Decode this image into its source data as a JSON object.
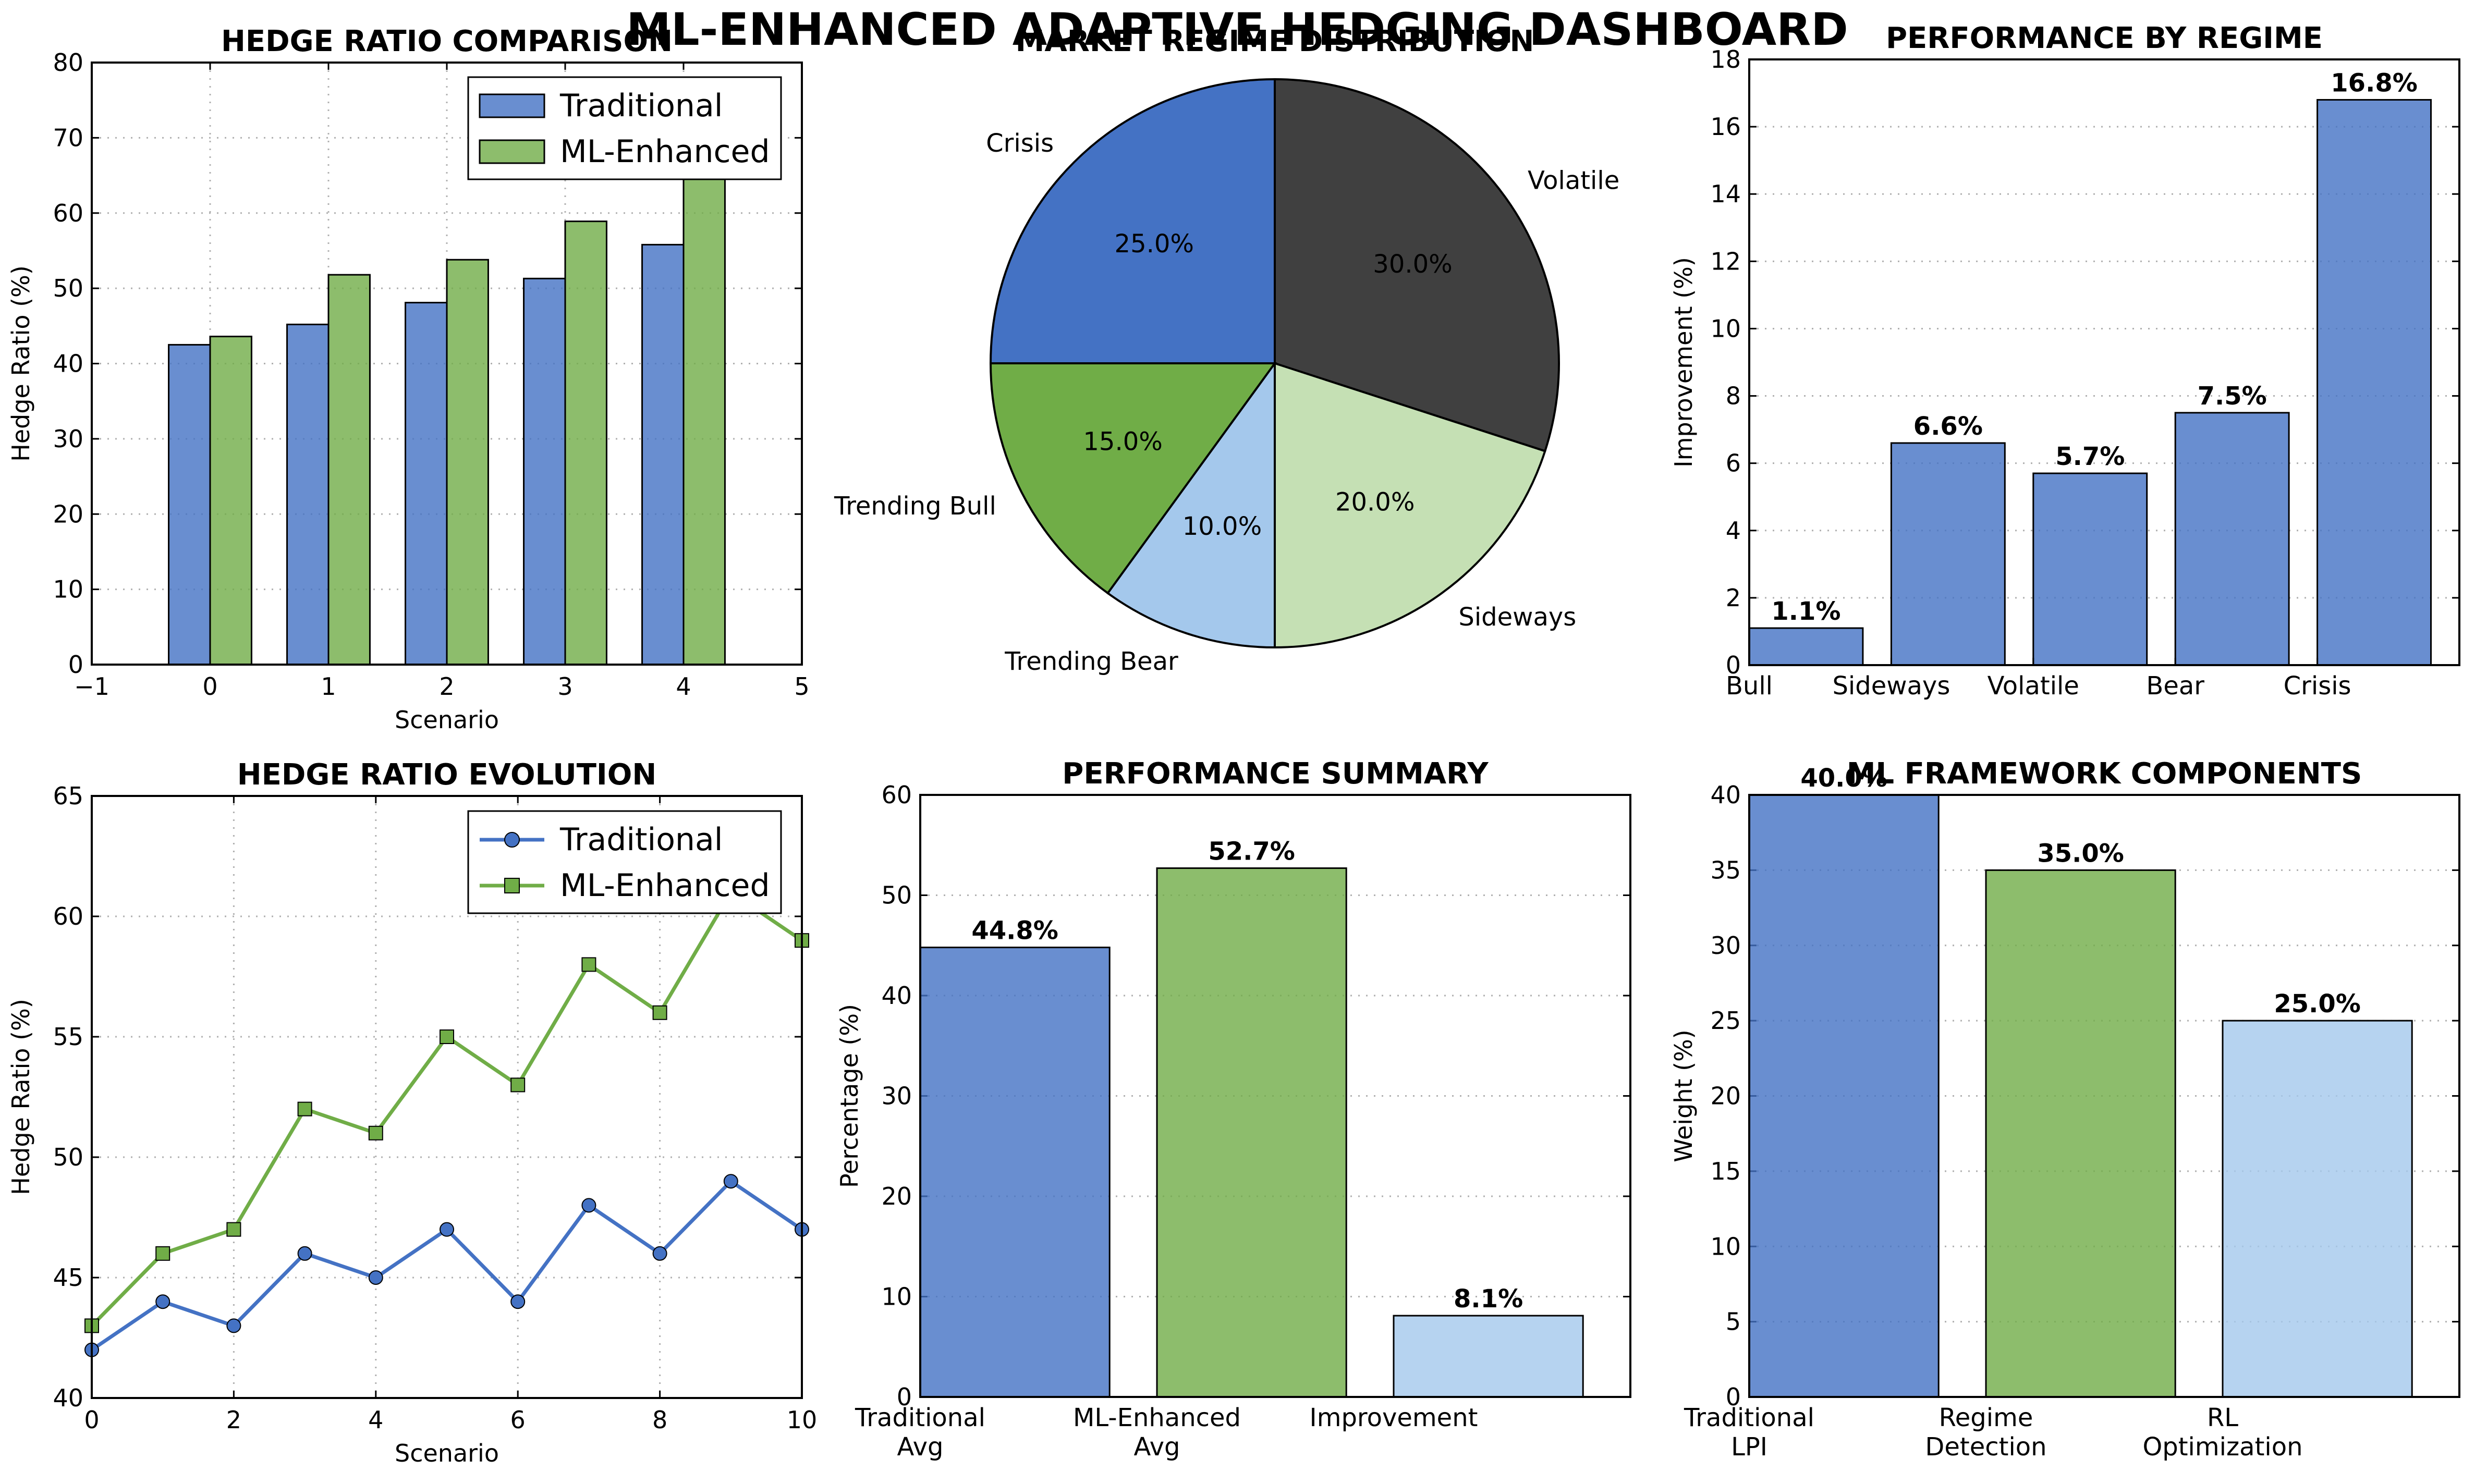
{
  "dashboard": {
    "title": "ML-ENHANCED ADAPTIVE HEDGING DASHBOARD"
  },
  "colors": {
    "blue": "#4472c4",
    "green": "#70ad47",
    "light_blue": "#a4c8ec",
    "pale_green": "#c5e0b4",
    "dark_gray": "#404040"
  },
  "chart_data": [
    {
      "id": "hedge_ratio_comparison",
      "type": "bar",
      "title": "HEDGE RATIO COMPARISON",
      "xlabel": "Scenario",
      "ylabel": "Hedge Ratio (%)",
      "xlim": [
        -1,
        5
      ],
      "ylim": [
        0,
        80
      ],
      "x_ticks": [
        "−1",
        "0",
        "1",
        "2",
        "3",
        "4",
        "5"
      ],
      "y_ticks": [
        "0",
        "10",
        "20",
        "30",
        "40",
        "50",
        "60",
        "70",
        "80"
      ],
      "grid": true,
      "legend": "top-right",
      "categories": [
        0,
        1,
        2,
        3,
        4
      ],
      "series": [
        {
          "name": "Traditional",
          "color": "#4472c4",
          "values": [
            42.5,
            45.2,
            48.1,
            51.3,
            55.8
          ]
        },
        {
          "name": "ML-Enhanced",
          "color": "#70ad47",
          "values": [
            43.6,
            51.8,
            53.8,
            58.9,
            65.2
          ]
        }
      ]
    },
    {
      "id": "market_regime_distribution",
      "type": "pie",
      "title": "MARKET REGIME DISTRIBUTION",
      "slices": [
        {
          "label": "Volatile",
          "value": 30.0,
          "pct_label": "30.0%",
          "color": "#404040"
        },
        {
          "label": "Sideways",
          "value": 20.0,
          "pct_label": "20.0%",
          "color": "#c5e0b4"
        },
        {
          "label": "Trending Bear",
          "value": 10.0,
          "pct_label": "10.0%",
          "color": "#a4c8ec"
        },
        {
          "label": "Trending Bull",
          "value": 15.0,
          "pct_label": "15.0%",
          "color": "#70ad47"
        },
        {
          "label": "Crisis",
          "value": 25.0,
          "pct_label": "25.0%",
          "color": "#4472c4"
        }
      ]
    },
    {
      "id": "performance_by_regime",
      "type": "bar",
      "title": "PERFORMANCE BY REGIME",
      "xlabel": "",
      "ylabel": "Improvement (%)",
      "ylim": [
        0,
        18
      ],
      "y_ticks": [
        "0",
        "2",
        "4",
        "6",
        "8",
        "10",
        "12",
        "14",
        "16",
        "18"
      ],
      "grid": true,
      "categories": [
        "Bull",
        "Sideways",
        "Volatile",
        "Bear",
        "Crisis"
      ],
      "values": [
        1.1,
        6.6,
        5.7,
        7.5,
        16.8
      ],
      "value_labels": [
        "1.1%",
        "6.6%",
        "5.7%",
        "7.5%",
        "16.8%"
      ],
      "color": "#4472c4"
    },
    {
      "id": "hedge_ratio_evolution",
      "type": "line",
      "title": "HEDGE RATIO EVOLUTION",
      "xlabel": "Scenario",
      "ylabel": "Hedge Ratio (%)",
      "xlim": [
        0,
        10
      ],
      "ylim": [
        40,
        65
      ],
      "x_ticks": [
        "0",
        "2",
        "4",
        "6",
        "8",
        "10"
      ],
      "y_ticks": [
        "40",
        "45",
        "50",
        "55",
        "60",
        "65"
      ],
      "grid": true,
      "legend": "top-right",
      "x": [
        0,
        1,
        2,
        3,
        4,
        5,
        6,
        7,
        8,
        9,
        10
      ],
      "series": [
        {
          "name": "Traditional",
          "marker": "circle",
          "color": "#4472c4",
          "values": [
            42,
            44,
            43,
            46,
            45,
            47,
            44,
            48,
            46,
            49,
            47
          ]
        },
        {
          "name": "ML-Enhanced",
          "marker": "square",
          "color": "#70ad47",
          "values": [
            43,
            46,
            47,
            52,
            51,
            55,
            53,
            58,
            56,
            61,
            59
          ]
        }
      ]
    },
    {
      "id": "performance_summary",
      "type": "bar",
      "title": "PERFORMANCE SUMMARY",
      "xlabel": "",
      "ylabel": "Percentage (%)",
      "ylim": [
        0,
        60
      ],
      "y_ticks": [
        "0",
        "10",
        "20",
        "30",
        "40",
        "50",
        "60"
      ],
      "grid": true,
      "categories": [
        [
          "Traditional",
          "Avg"
        ],
        [
          "ML-Enhanced",
          "Avg"
        ],
        [
          "Improvement"
        ]
      ],
      "values": [
        44.8,
        52.7,
        8.1
      ],
      "value_labels": [
        "44.8%",
        "52.7%",
        "8.1%"
      ],
      "colors": [
        "#4472c4",
        "#70ad47",
        "#a4c8ec"
      ]
    },
    {
      "id": "ml_framework_components",
      "type": "bar",
      "title": "ML FRAMEWORK COMPONENTS",
      "xlabel": "",
      "ylabel": "Weight (%)",
      "ylim": [
        0,
        40
      ],
      "y_ticks": [
        "0",
        "5",
        "10",
        "15",
        "20",
        "25",
        "30",
        "35",
        "40"
      ],
      "grid": true,
      "categories": [
        [
          "Traditional",
          "LPI"
        ],
        [
          "Regime",
          "Detection"
        ],
        [
          "RL",
          "Optimization"
        ]
      ],
      "values": [
        40.0,
        35.0,
        25.0
      ],
      "value_labels": [
        "40.0%",
        "35.0%",
        "25.0%"
      ],
      "colors": [
        "#4472c4",
        "#70ad47",
        "#a4c8ec"
      ]
    }
  ]
}
